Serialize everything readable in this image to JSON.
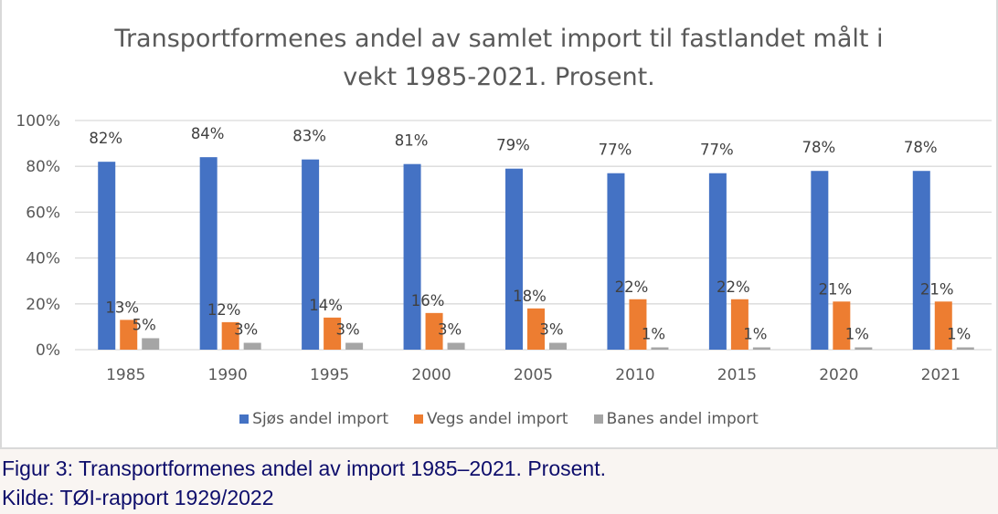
{
  "chart_data": {
    "type": "bar",
    "title": "Transportformenes andel av samlet import til fastlandet målt i vekt 1985-2021. Prosent.",
    "title_lines": [
      "Transportformenes andel av samlet import til fastlandet målt i",
      "vekt 1985-2021. Prosent."
    ],
    "categories": [
      "1985",
      "1990",
      "1995",
      "2000",
      "2005",
      "2010",
      "2015",
      "2020",
      "2021"
    ],
    "series": [
      {
        "name": "Sjøs andel import",
        "color": "#4472c4",
        "values": [
          82,
          84,
          83,
          81,
          79,
          77,
          77,
          78,
          78
        ]
      },
      {
        "name": "Vegs andel import",
        "color": "#ed7d31",
        "values": [
          13,
          12,
          14,
          16,
          18,
          22,
          22,
          21,
          21
        ]
      },
      {
        "name": "Banes andel import",
        "color": "#a5a5a5",
        "values": [
          5,
          3,
          3,
          3,
          3,
          1,
          1,
          1,
          1
        ]
      }
    ],
    "yticks": [
      "0%",
      "20%",
      "40%",
      "60%",
      "80%",
      "100%"
    ],
    "ylim": [
      0,
      100
    ],
    "grid": true,
    "legend": "bottom",
    "data_labels": true
  },
  "caption": {
    "line1": "Figur 3: Transportformenes andel av import 1985–2021. Prosent.",
    "line2": "Kilde: TØI-rapport 1929/2022"
  }
}
